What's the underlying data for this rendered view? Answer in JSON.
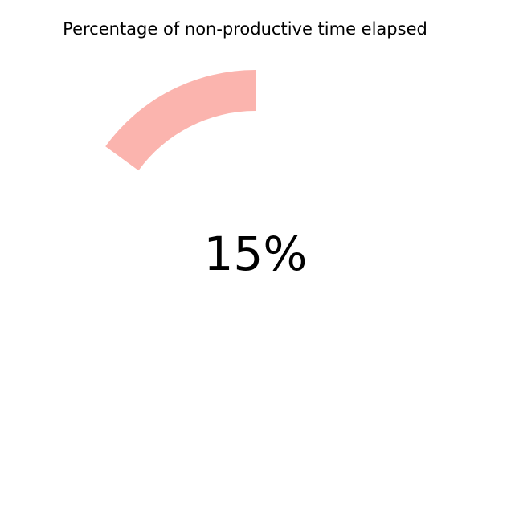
{
  "chart_data": {
    "type": "pie",
    "title": "Percentage of non-productive time elapsed",
    "value": 15,
    "max": 100,
    "center_label": "15%",
    "slices": [
      {
        "label": "",
        "value": 15,
        "color": "#fbb4ae"
      },
      {
        "label": "",
        "value": 85,
        "color": "#ffffff"
      }
    ],
    "start_angle_deg": 90,
    "direction": "counterclockwise",
    "donut": true,
    "legend": "none",
    "grid": false
  }
}
